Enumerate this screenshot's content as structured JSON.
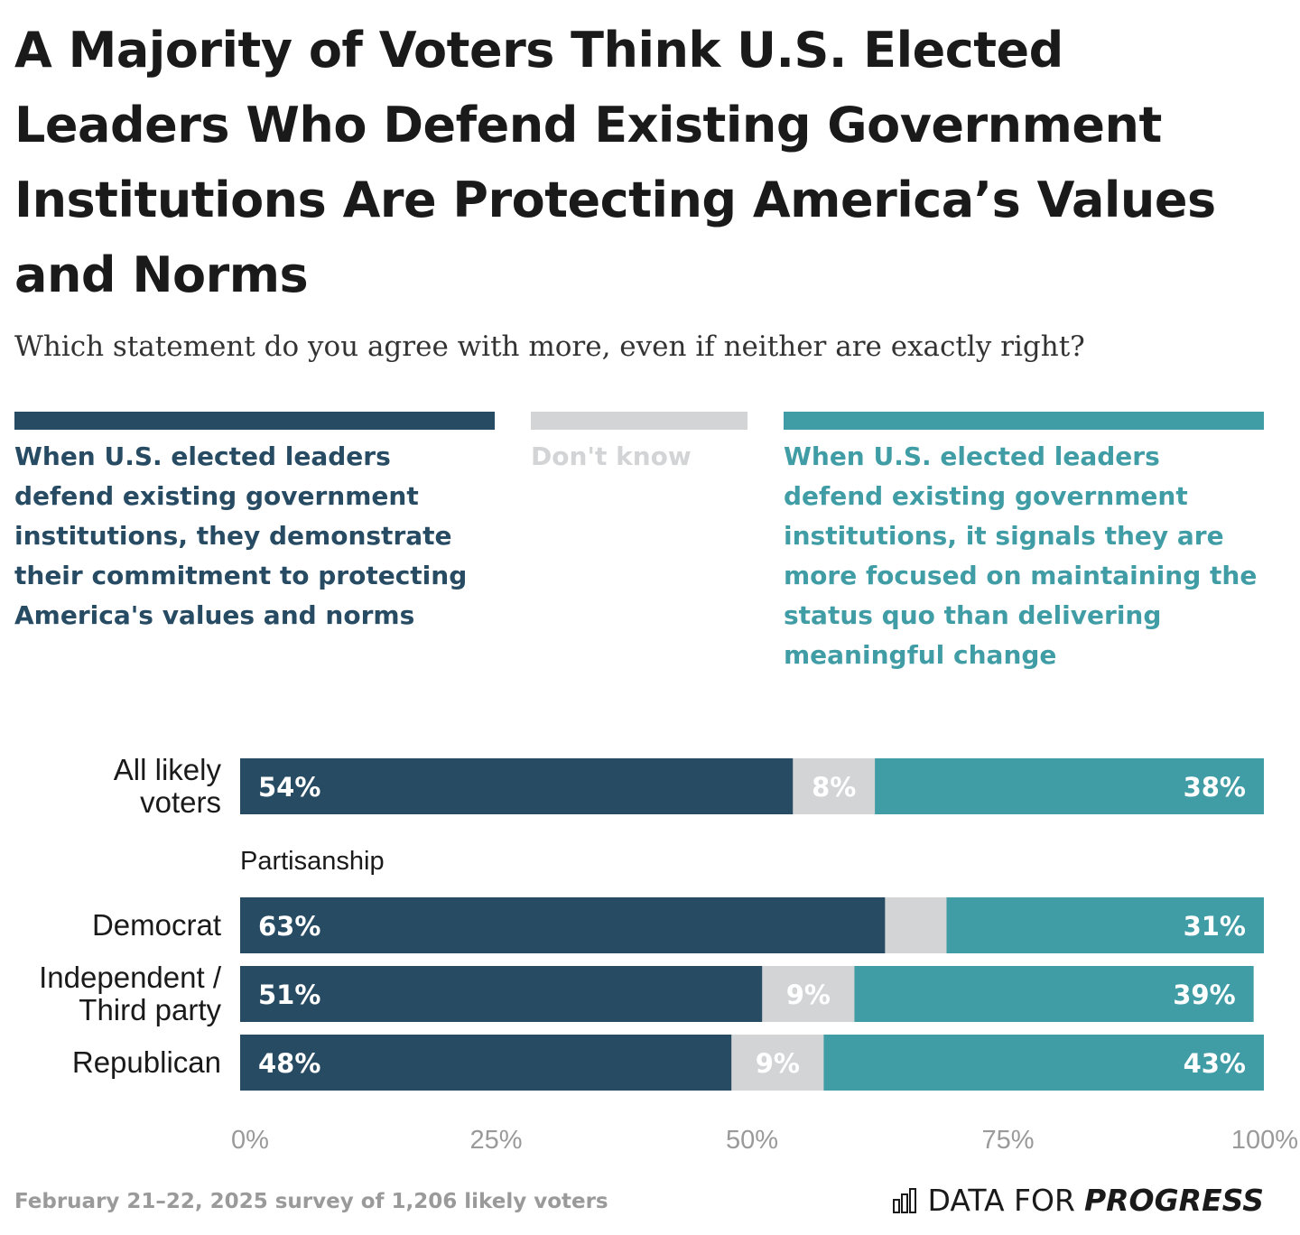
{
  "title": "A Majority of Voters Think U.S. Elected Leaders Who Defend Existing Government Institutions Are Protecting America’s Values and Norms",
  "subtitle": "Which statement do you agree with more, even if neither are exactly right?",
  "colors": {
    "protecting": "#274b63",
    "dont_know": "#d3d4d6",
    "status_quo": "#419da5",
    "axis_text": "#9a9a9a"
  },
  "footer": {
    "note": "February 21–22, 2025 survey of 1,206 likely voters",
    "brand_regular": "DATA FOR",
    "brand_bold": "PROGRESS",
    "brand_icon": "bar-chart-logo-icon"
  },
  "chart_data": {
    "type": "bar",
    "orientation": "horizontal",
    "stacked": true,
    "xlim": [
      0,
      100
    ],
    "ticks": [
      "0%",
      "25%",
      "50%",
      "75%",
      "100%"
    ],
    "series": [
      {
        "key": "protecting",
        "name": "When U.S. elected leaders defend existing government institutions, they demonstrate their commitment to protecting America's values and norms"
      },
      {
        "key": "dont_know",
        "name": "Don't know"
      },
      {
        "key": "status_quo",
        "name": "When U.S. elected leaders defend existing government institutions, it signals they are more focused on maintaining the status quo than delivering meaningful change"
      }
    ],
    "groups": [
      {
        "heading": "",
        "rows": [
          {
            "label": [
              "All likely",
              "voters"
            ],
            "values": [
              54,
              8,
              38
            ],
            "labels": [
              "54%",
              "8%",
              "38%"
            ]
          }
        ]
      },
      {
        "heading": "Partisanship",
        "rows": [
          {
            "label": [
              "Democrat"
            ],
            "values": [
              63,
              6,
              31
            ],
            "labels": [
              "63%",
              "",
              "31%"
            ]
          },
          {
            "label": [
              "Independent /",
              "Third party"
            ],
            "values": [
              51,
              9,
              39
            ],
            "labels": [
              "51%",
              "9%",
              "39%"
            ]
          },
          {
            "label": [
              "Republican"
            ],
            "values": [
              48,
              9,
              43
            ],
            "labels": [
              "48%",
              "9%",
              "43%"
            ]
          }
        ]
      }
    ]
  }
}
